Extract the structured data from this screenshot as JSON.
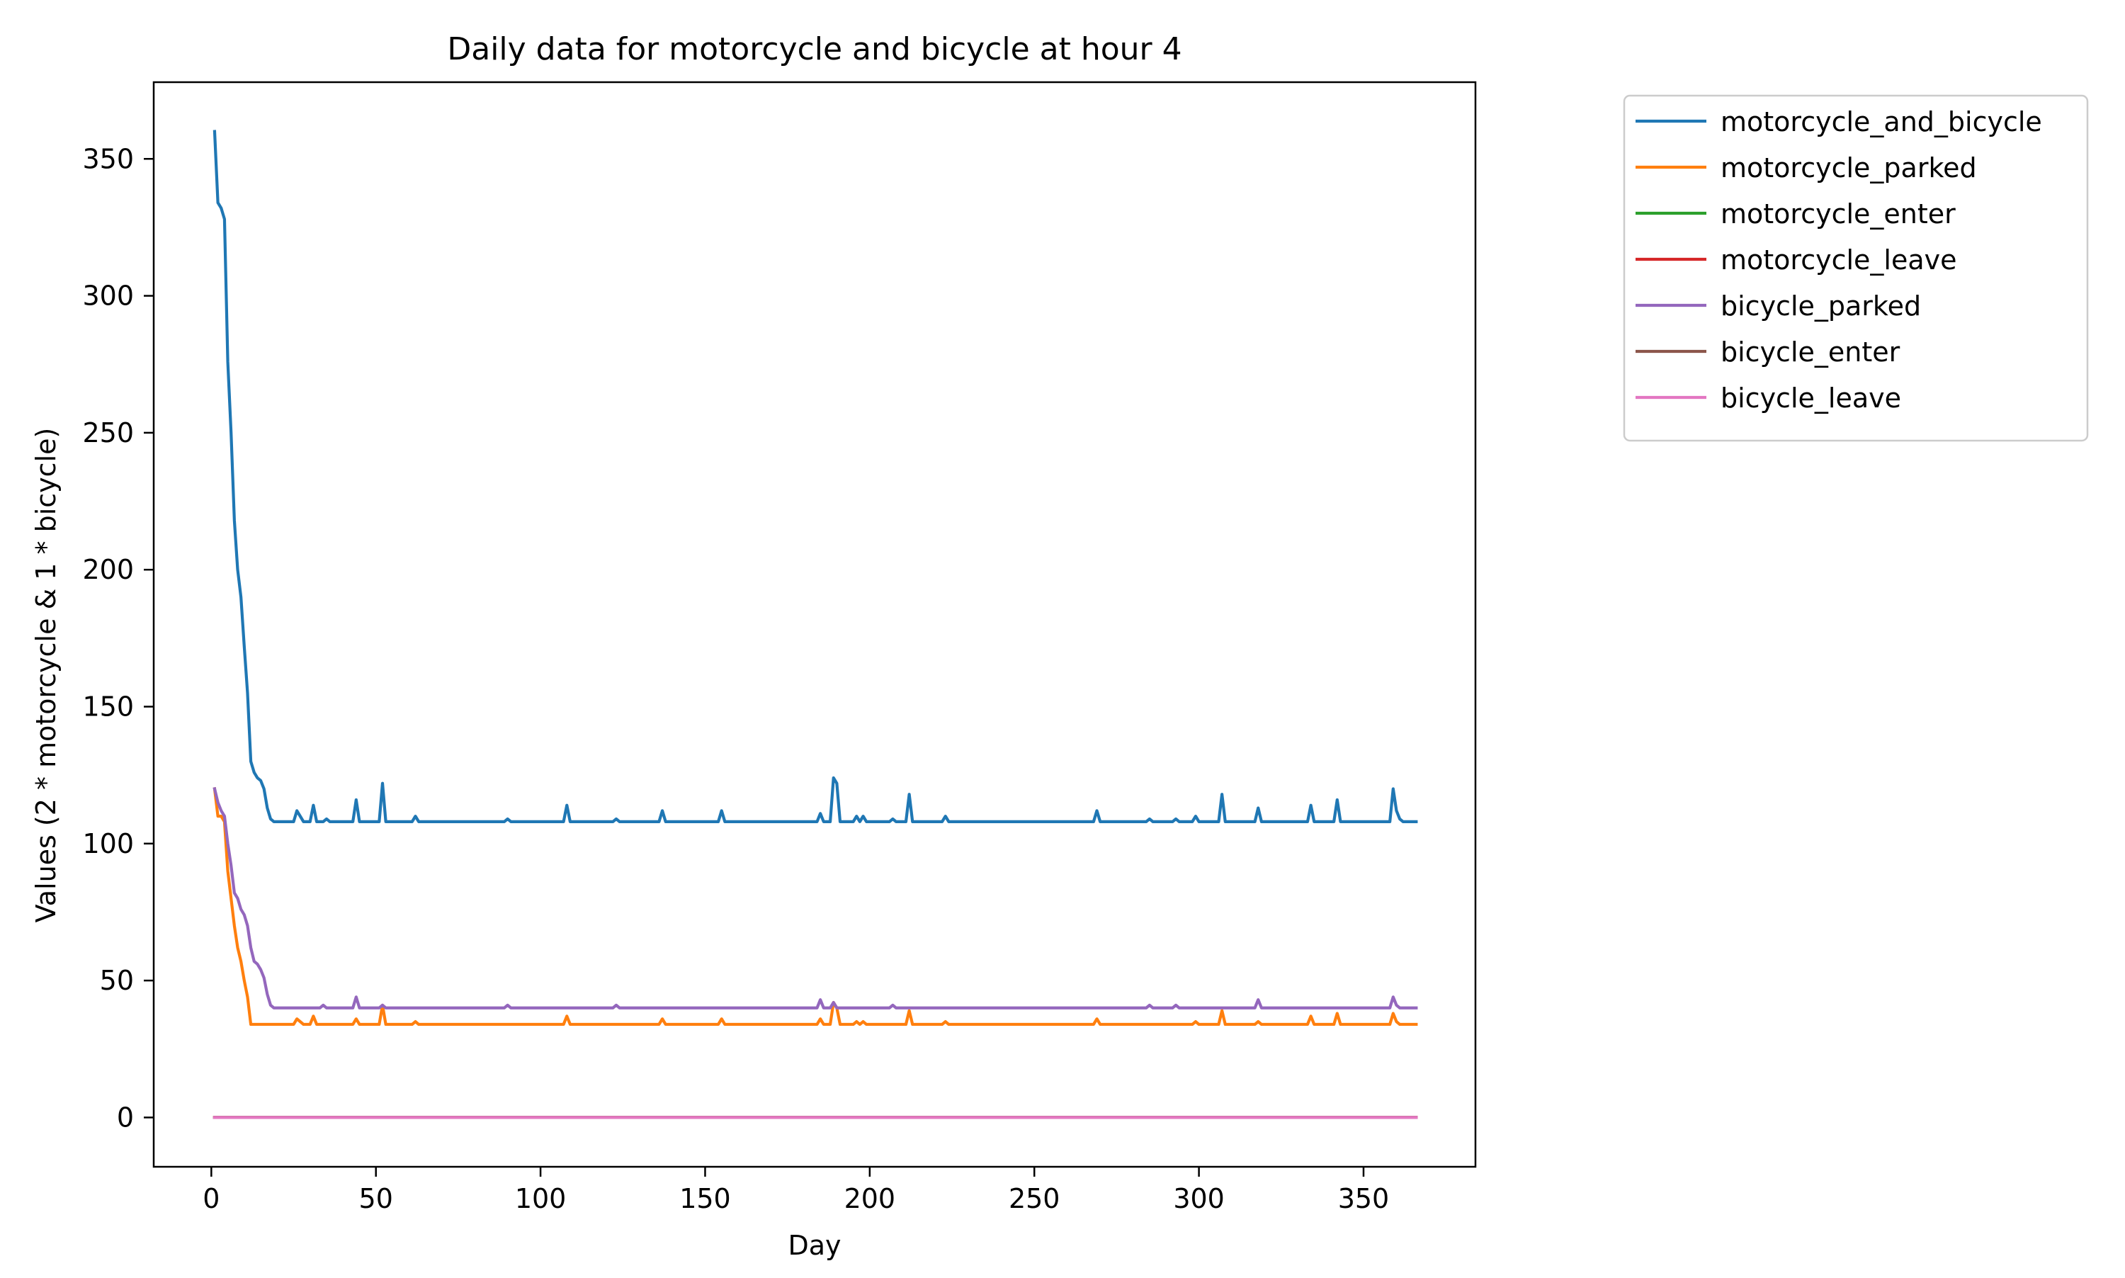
{
  "chart_data": {
    "type": "line",
    "title": "Daily data for motorcycle and bicycle at hour 4",
    "xlabel": "Day",
    "ylabel": "Values (2 * motorcycle & 1 * bicycle)",
    "xlim": [
      -17.5,
      384
    ],
    "ylim": [
      -18,
      378
    ],
    "xticks": [
      0,
      50,
      100,
      150,
      200,
      250,
      300,
      350
    ],
    "yticks": [
      0,
      50,
      100,
      150,
      200,
      250,
      300,
      350
    ],
    "grid": false,
    "legend_position": "outside-top-right",
    "x_range": [
      1,
      366
    ],
    "series": [
      {
        "name": "motorcycle_and_bicycle",
        "color": "#1f77b4",
        "base": 108,
        "points": [
          [
            1,
            360
          ],
          [
            2,
            334
          ],
          [
            3,
            332
          ],
          [
            4,
            328
          ],
          [
            5,
            276
          ],
          [
            6,
            250
          ],
          [
            7,
            218
          ],
          [
            8,
            200
          ],
          [
            9,
            190
          ],
          [
            10,
            172
          ],
          [
            11,
            155
          ],
          [
            12,
            130
          ],
          [
            13,
            126
          ],
          [
            14,
            124
          ],
          [
            15,
            123
          ],
          [
            16,
            120
          ],
          [
            17,
            113
          ],
          [
            18,
            109
          ],
          [
            19,
            108
          ],
          [
            25,
            108
          ],
          [
            26,
            112
          ],
          [
            27,
            110
          ],
          [
            28,
            108
          ],
          [
            30,
            108
          ],
          [
            31,
            114
          ],
          [
            32,
            108
          ],
          [
            34,
            108
          ],
          [
            35,
            109
          ],
          [
            36,
            108
          ],
          [
            43,
            108
          ],
          [
            44,
            116
          ],
          [
            45,
            108
          ],
          [
            51,
            108
          ],
          [
            52,
            122
          ],
          [
            53,
            108
          ],
          [
            61,
            108
          ],
          [
            62,
            110
          ],
          [
            63,
            108
          ],
          [
            89,
            108
          ],
          [
            90,
            109
          ],
          [
            91,
            108
          ],
          [
            107,
            108
          ],
          [
            108,
            114
          ],
          [
            109,
            108
          ],
          [
            122,
            108
          ],
          [
            123,
            109
          ],
          [
            124,
            108
          ],
          [
            136,
            108
          ],
          [
            137,
            112
          ],
          [
            138,
            108
          ],
          [
            154,
            108
          ],
          [
            155,
            112
          ],
          [
            156,
            108
          ],
          [
            184,
            108
          ],
          [
            185,
            111
          ],
          [
            186,
            108
          ],
          [
            188,
            108
          ],
          [
            189,
            124
          ],
          [
            190,
            122
          ],
          [
            191,
            108
          ],
          [
            195,
            108
          ],
          [
            196,
            110
          ],
          [
            197,
            108
          ],
          [
            198,
            110
          ],
          [
            199,
            108
          ],
          [
            206,
            108
          ],
          [
            207,
            109
          ],
          [
            208,
            108
          ],
          [
            211,
            108
          ],
          [
            212,
            118
          ],
          [
            213,
            108
          ],
          [
            222,
            108
          ],
          [
            223,
            110
          ],
          [
            224,
            108
          ],
          [
            268,
            108
          ],
          [
            269,
            112
          ],
          [
            270,
            108
          ],
          [
            284,
            108
          ],
          [
            285,
            109
          ],
          [
            286,
            108
          ],
          [
            292,
            108
          ],
          [
            293,
            109
          ],
          [
            294,
            108
          ],
          [
            298,
            108
          ],
          [
            299,
            110
          ],
          [
            300,
            108
          ],
          [
            306,
            108
          ],
          [
            307,
            118
          ],
          [
            308,
            108
          ],
          [
            317,
            108
          ],
          [
            318,
            113
          ],
          [
            319,
            108
          ],
          [
            333,
            108
          ],
          [
            334,
            114
          ],
          [
            335,
            108
          ],
          [
            341,
            108
          ],
          [
            342,
            116
          ],
          [
            343,
            108
          ],
          [
            358,
            108
          ],
          [
            359,
            120
          ],
          [
            360,
            112
          ],
          [
            361,
            109
          ],
          [
            362,
            108
          ],
          [
            366,
            108
          ]
        ]
      },
      {
        "name": "motorcycle_parked",
        "color": "#ff7f0e",
        "base": 34,
        "points": [
          [
            1,
            120
          ],
          [
            2,
            110
          ],
          [
            3,
            110
          ],
          [
            4,
            108
          ],
          [
            5,
            90
          ],
          [
            6,
            80
          ],
          [
            7,
            70
          ],
          [
            8,
            62
          ],
          [
            9,
            57
          ],
          [
            10,
            50
          ],
          [
            11,
            44
          ],
          [
            12,
            34
          ],
          [
            25,
            34
          ],
          [
            26,
            36
          ],
          [
            27,
            35
          ],
          [
            28,
            34
          ],
          [
            30,
            34
          ],
          [
            31,
            37
          ],
          [
            32,
            34
          ],
          [
            43,
            34
          ],
          [
            44,
            36
          ],
          [
            45,
            34
          ],
          [
            51,
            34
          ],
          [
            52,
            41
          ],
          [
            53,
            34
          ],
          [
            61,
            34
          ],
          [
            62,
            35
          ],
          [
            63,
            34
          ],
          [
            107,
            34
          ],
          [
            108,
            37
          ],
          [
            109,
            34
          ],
          [
            136,
            34
          ],
          [
            137,
            36
          ],
          [
            138,
            34
          ],
          [
            154,
            34
          ],
          [
            155,
            36
          ],
          [
            156,
            34
          ],
          [
            184,
            34
          ],
          [
            185,
            36
          ],
          [
            186,
            34
          ],
          [
            188,
            34
          ],
          [
            189,
            42
          ],
          [
            190,
            40
          ],
          [
            191,
            34
          ],
          [
            195,
            34
          ],
          [
            196,
            35
          ],
          [
            197,
            34
          ],
          [
            198,
            35
          ],
          [
            199,
            34
          ],
          [
            211,
            34
          ],
          [
            212,
            39
          ],
          [
            213,
            34
          ],
          [
            222,
            34
          ],
          [
            223,
            35
          ],
          [
            224,
            34
          ],
          [
            268,
            34
          ],
          [
            269,
            36
          ],
          [
            270,
            34
          ],
          [
            298,
            34
          ],
          [
            299,
            35
          ],
          [
            300,
            34
          ],
          [
            306,
            34
          ],
          [
            307,
            39
          ],
          [
            308,
            34
          ],
          [
            317,
            34
          ],
          [
            318,
            35
          ],
          [
            319,
            34
          ],
          [
            333,
            34
          ],
          [
            334,
            37
          ],
          [
            335,
            34
          ],
          [
            341,
            34
          ],
          [
            342,
            38
          ],
          [
            343,
            34
          ],
          [
            358,
            34
          ],
          [
            359,
            38
          ],
          [
            360,
            35
          ],
          [
            361,
            34
          ],
          [
            366,
            34
          ]
        ]
      },
      {
        "name": "motorcycle_enter",
        "color": "#2ca02c",
        "base": 0,
        "points": [
          [
            1,
            0
          ],
          [
            366,
            0
          ]
        ]
      },
      {
        "name": "motorcycle_leave",
        "color": "#d62728",
        "base": 0,
        "points": [
          [
            1,
            0
          ],
          [
            366,
            0
          ]
        ]
      },
      {
        "name": "bicycle_parked",
        "color": "#9467bd",
        "base": 40,
        "points": [
          [
            1,
            120
          ],
          [
            2,
            115
          ],
          [
            3,
            112
          ],
          [
            4,
            110
          ],
          [
            5,
            100
          ],
          [
            6,
            92
          ],
          [
            7,
            82
          ],
          [
            8,
            80
          ],
          [
            9,
            76
          ],
          [
            10,
            74
          ],
          [
            11,
            70
          ],
          [
            12,
            62
          ],
          [
            13,
            57
          ],
          [
            14,
            56
          ],
          [
            15,
            54
          ],
          [
            16,
            51
          ],
          [
            17,
            45
          ],
          [
            18,
            41
          ],
          [
            19,
            40
          ],
          [
            33,
            40
          ],
          [
            34,
            41
          ],
          [
            35,
            40
          ],
          [
            43,
            40
          ],
          [
            44,
            44
          ],
          [
            45,
            40
          ],
          [
            51,
            40
          ],
          [
            52,
            41
          ],
          [
            53,
            40
          ],
          [
            89,
            40
          ],
          [
            90,
            41
          ],
          [
            91,
            40
          ],
          [
            122,
            40
          ],
          [
            123,
            41
          ],
          [
            124,
            40
          ],
          [
            184,
            40
          ],
          [
            185,
            43
          ],
          [
            186,
            40
          ],
          [
            188,
            40
          ],
          [
            189,
            42
          ],
          [
            190,
            40
          ],
          [
            206,
            40
          ],
          [
            207,
            41
          ],
          [
            208,
            40
          ],
          [
            284,
            40
          ],
          [
            285,
            41
          ],
          [
            286,
            40
          ],
          [
            292,
            40
          ],
          [
            293,
            41
          ],
          [
            294,
            40
          ],
          [
            317,
            40
          ],
          [
            318,
            43
          ],
          [
            319,
            40
          ],
          [
            358,
            40
          ],
          [
            359,
            44
          ],
          [
            360,
            41
          ],
          [
            361,
            40
          ],
          [
            366,
            40
          ]
        ]
      },
      {
        "name": "bicycle_enter",
        "color": "#8c564b",
        "base": 0,
        "points": [
          [
            1,
            0
          ],
          [
            366,
            0
          ]
        ]
      },
      {
        "name": "bicycle_leave",
        "color": "#e377c2",
        "base": 0,
        "points": [
          [
            1,
            0
          ],
          [
            366,
            0
          ]
        ]
      }
    ]
  }
}
